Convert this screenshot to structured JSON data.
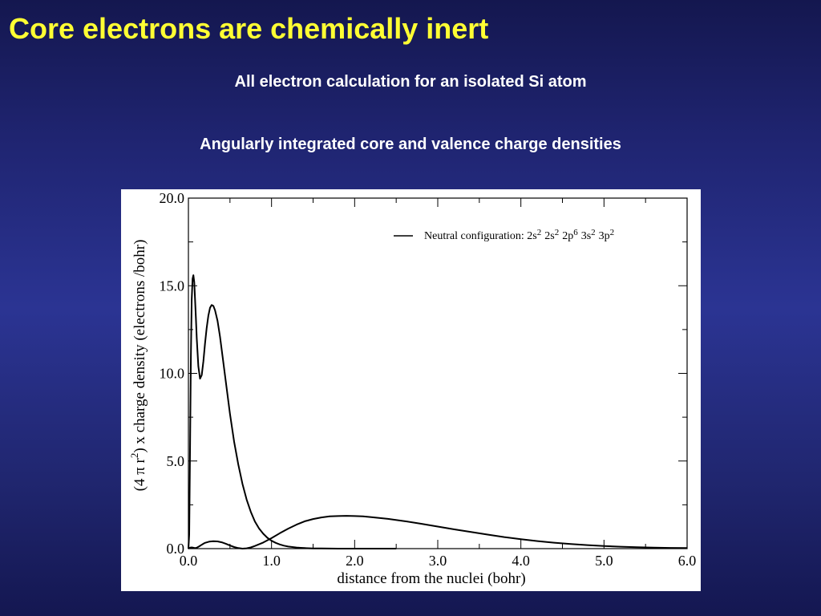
{
  "slide": {
    "title": "Core electrons are chemically inert",
    "subtitle_1": "All electron calculation for an isolated Si atom",
    "subtitle_2": "Angularly integrated core and valence charge densities",
    "title_color": "#ffff33",
    "text_color": "#ffffff"
  },
  "chart_data": {
    "type": "line",
    "xlabel": "distance from the nuclei (bohr)",
    "ylabel": {
      "prefix": "(4",
      "pi": "π",
      "r": "r",
      "exponent": "2",
      "suffix": ") x charge density (electrons /bohr)"
    },
    "xlim": [
      0.0,
      6.0
    ],
    "ylim": [
      0.0,
      20.0
    ],
    "x_ticks": [
      {
        "value": 0,
        "label": "0.0"
      },
      {
        "value": 1,
        "label": "1.0"
      },
      {
        "value": 2,
        "label": "2.0"
      },
      {
        "value": 3,
        "label": "3.0"
      },
      {
        "value": 4,
        "label": "4.0"
      },
      {
        "value": 5,
        "label": "5.0"
      },
      {
        "value": 6,
        "label": "6.0"
      }
    ],
    "y_ticks": [
      {
        "value": 0,
        "label": "0.0"
      },
      {
        "value": 5,
        "label": "5.0"
      },
      {
        "value": 10,
        "label": "10.0"
      },
      {
        "value": 15,
        "label": "15.0"
      },
      {
        "value": 20,
        "label": "20.0"
      }
    ],
    "x_minor_step": 0.5,
    "y_minor_step": 2.5,
    "grid": false,
    "legend": {
      "placement": "top-right",
      "text": "Neutral configuration: 2s",
      "config": [
        {
          "text": "Neutral configuration: 2s",
          "sup": "2"
        },
        {
          "text": "2s",
          "sup": "2"
        },
        {
          "text": "2p",
          "sup": "6"
        },
        {
          "text": "3s",
          "sup": "2"
        },
        {
          "text": "3p",
          "sup": "2"
        }
      ]
    },
    "series": [
      {
        "x": [
          0.0,
          0.01,
          0.02,
          0.03,
          0.04,
          0.05,
          0.06,
          0.07,
          0.08,
          0.09,
          0.1,
          0.12,
          0.14,
          0.16,
          0.18,
          0.2,
          0.22,
          0.24,
          0.26,
          0.28,
          0.3,
          0.32,
          0.35,
          0.38,
          0.41,
          0.44,
          0.47,
          0.5,
          0.55,
          0.6,
          0.65,
          0.7,
          0.75,
          0.8,
          0.85,
          0.9,
          0.95,
          1.0,
          1.05,
          1.1,
          1.15,
          1.2,
          1.25,
          1.3,
          1.35,
          1.4,
          1.5,
          1.6,
          1.7,
          1.8,
          2.0,
          2.2,
          2.5
        ],
        "values": [
          0.0,
          0.8,
          6.0,
          11.0,
          14.2,
          15.4,
          15.6,
          15.2,
          14.2,
          13.2,
          12.0,
          10.4,
          9.7,
          9.9,
          10.7,
          11.7,
          12.6,
          13.3,
          13.75,
          13.9,
          13.85,
          13.6,
          13.0,
          12.1,
          11.0,
          9.9,
          8.8,
          7.7,
          6.1,
          4.8,
          3.7,
          2.8,
          2.1,
          1.55,
          1.15,
          0.85,
          0.62,
          0.45,
          0.33,
          0.24,
          0.17,
          0.12,
          0.09,
          0.065,
          0.045,
          0.032,
          0.016,
          0.008,
          0.004,
          0.002,
          0.0005,
          0.0001,
          0.0
        ]
      },
      {
        "x": [
          0.0,
          0.02,
          0.04,
          0.06,
          0.08,
          0.1,
          0.12,
          0.14,
          0.16,
          0.18,
          0.2,
          0.25,
          0.3,
          0.35,
          0.4,
          0.45,
          0.5,
          0.55,
          0.6,
          0.65,
          0.7,
          0.75,
          0.8,
          0.9,
          1.0,
          1.1,
          1.2,
          1.3,
          1.4,
          1.5,
          1.6,
          1.7,
          1.8,
          1.9,
          2.0,
          2.1,
          2.2,
          2.4,
          2.6,
          2.8,
          3.0,
          3.2,
          3.4,
          3.6,
          3.8,
          4.0,
          4.2,
          4.4,
          4.6,
          4.8,
          5.0,
          5.2,
          5.4,
          5.6,
          5.8,
          6.0
        ],
        "values": [
          0.0,
          0.06,
          0.07,
          0.05,
          0.03,
          0.05,
          0.1,
          0.16,
          0.22,
          0.28,
          0.33,
          0.4,
          0.42,
          0.41,
          0.36,
          0.28,
          0.18,
          0.09,
          0.03,
          0.0,
          0.02,
          0.07,
          0.15,
          0.35,
          0.6,
          0.88,
          1.14,
          1.37,
          1.56,
          1.69,
          1.78,
          1.84,
          1.86,
          1.87,
          1.86,
          1.84,
          1.8,
          1.7,
          1.57,
          1.42,
          1.26,
          1.1,
          0.95,
          0.8,
          0.66,
          0.54,
          0.43,
          0.34,
          0.26,
          0.2,
          0.15,
          0.11,
          0.08,
          0.06,
          0.04,
          0.03
        ]
      }
    ]
  }
}
